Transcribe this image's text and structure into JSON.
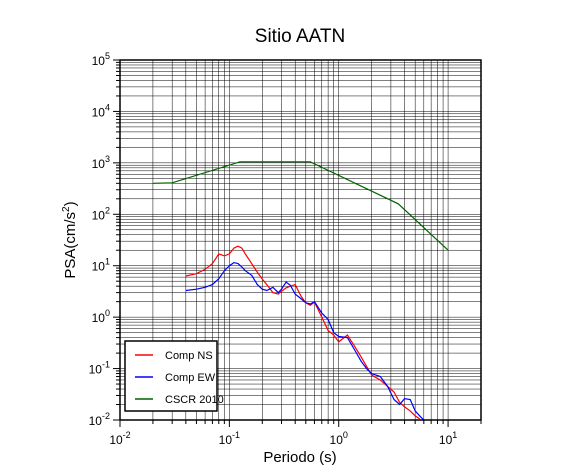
{
  "chart_data": {
    "type": "line",
    "title": "Sitio AATN",
    "xlabel": "Periodo (s)",
    "ylabel": "PSA(cm/s2)",
    "x_scale": "log",
    "y_scale": "log",
    "xlim": [
      0.01,
      20
    ],
    "ylim": [
      0.01,
      100000
    ],
    "grid": true,
    "legend_position": "bottom-left",
    "x_tick_labels": [
      "10^-2",
      "10^-1",
      "10^0",
      "10^1"
    ],
    "y_tick_labels": [
      "10^-2",
      "10^-1",
      "10^0",
      "10^1",
      "10^2",
      "10^3",
      "10^4",
      "10^5"
    ],
    "series": [
      {
        "name": "Comp NS",
        "color": "#ff0000",
        "x": [
          0.04,
          0.05,
          0.06,
          0.07,
          0.08,
          0.09,
          0.1,
          0.11,
          0.12,
          0.13,
          0.14,
          0.16,
          0.18,
          0.2,
          0.22,
          0.25,
          0.28,
          0.3,
          0.33,
          0.36,
          0.4,
          0.45,
          0.5,
          0.55,
          0.6,
          0.7,
          0.8,
          0.9,
          1.0,
          1.2,
          1.4,
          1.6,
          1.8,
          2.0,
          2.4,
          2.8,
          3.2,
          3.6,
          4.0,
          4.5,
          5.0,
          5.5
        ],
        "y": [
          6.3,
          7.0,
          8.5,
          11,
          17,
          15.5,
          17,
          22,
          24,
          22,
          17,
          11,
          7.5,
          5.5,
          4.3,
          3.0,
          2.8,
          3.2,
          3.7,
          4.0,
          4.3,
          2.6,
          1.9,
          1.7,
          1.95,
          1.0,
          0.55,
          0.45,
          0.33,
          0.45,
          0.27,
          0.17,
          0.11,
          0.075,
          0.06,
          0.045,
          0.035,
          0.022,
          0.018,
          0.015,
          0.012,
          0.0105
        ]
      },
      {
        "name": "Comp EW",
        "color": "#0000ff",
        "x": [
          0.04,
          0.05,
          0.06,
          0.07,
          0.08,
          0.09,
          0.1,
          0.11,
          0.12,
          0.13,
          0.14,
          0.16,
          0.18,
          0.2,
          0.22,
          0.25,
          0.28,
          0.3,
          0.33,
          0.36,
          0.4,
          0.45,
          0.5,
          0.55,
          0.6,
          0.7,
          0.8,
          0.9,
          1.0,
          1.2,
          1.4,
          1.6,
          1.8,
          2.0,
          2.4,
          2.8,
          3.2,
          3.6,
          4.0,
          4.5,
          5.0,
          5.5,
          6.0
        ],
        "y": [
          3.3,
          3.5,
          3.8,
          4.3,
          5.6,
          8,
          10,
          11.5,
          11,
          9.5,
          8,
          6.5,
          4.3,
          3.5,
          3.3,
          3.8,
          3.0,
          3.5,
          4.8,
          4.2,
          2.8,
          2.3,
          1.9,
          1.8,
          2.0,
          1.2,
          0.9,
          0.5,
          0.42,
          0.4,
          0.23,
          0.14,
          0.1,
          0.08,
          0.07,
          0.045,
          0.025,
          0.02,
          0.026,
          0.025,
          0.015,
          0.012,
          0.01
        ]
      },
      {
        "name": "CSCR 2010",
        "color": "#006400",
        "x": [
          0.02,
          0.03,
          0.125,
          0.55,
          3.5,
          10
        ],
        "y": [
          400,
          410,
          1050,
          1050,
          160,
          20
        ]
      }
    ]
  }
}
